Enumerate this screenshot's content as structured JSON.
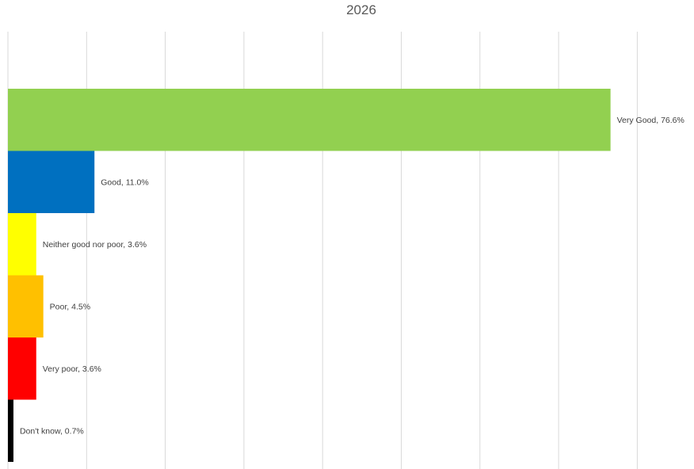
{
  "chart_data": {
    "type": "bar",
    "orientation": "horizontal",
    "title": "2026",
    "xlabel": "",
    "ylabel": "",
    "xlim": [
      0,
      80
    ],
    "grid": true,
    "legend": "none",
    "categories": [
      "Very Good",
      "Good",
      "Neither good nor poor",
      "Poor",
      "Very poor",
      "Don't know"
    ],
    "values": [
      76.6,
      11.0,
      3.6,
      4.5,
      3.6,
      0.7
    ],
    "data_labels": [
      "Very Good, 76.6%",
      "Good, 11.0%",
      "Neither good nor poor, 3.6%",
      "Poor, 4.5%",
      "Very poor, 3.6%",
      "Don't know, 0.7%"
    ],
    "colors": [
      "#92d050",
      "#0070c0",
      "#ffff00",
      "#ffc000",
      "#ff0000",
      "#000000"
    ],
    "gridline_color": "#d9d9d9"
  }
}
